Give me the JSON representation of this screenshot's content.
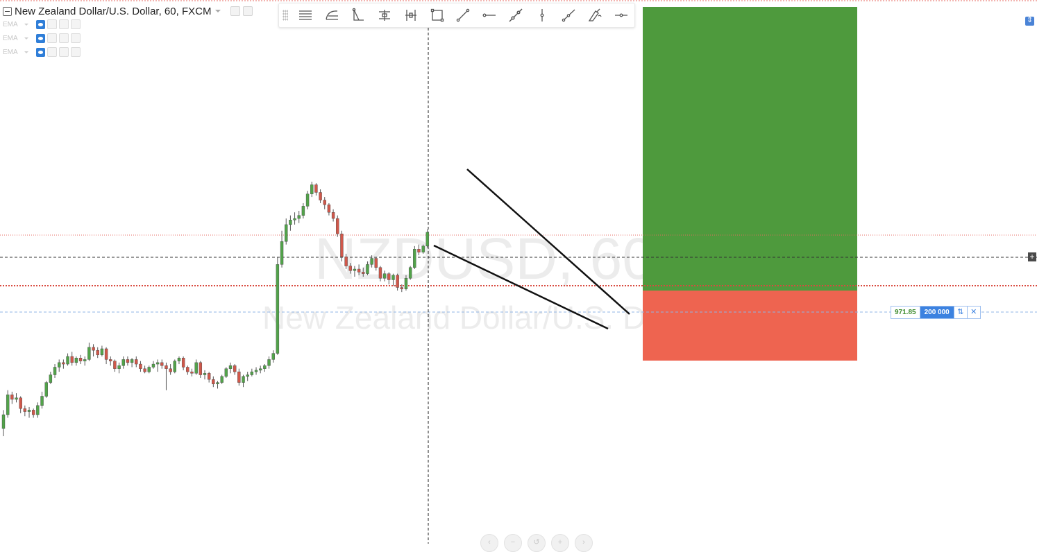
{
  "header": {
    "symbol_title": "New Zealand Dollar/U.S. Dollar, 60, FXCM"
  },
  "indicators": [
    {
      "name": "EMA"
    },
    {
      "name": "EMA"
    },
    {
      "name": "EMA"
    }
  ],
  "toolbar": {
    "tools": [
      {
        "name": "horizontal-lines-tool",
        "icon": "lines-icon"
      },
      {
        "name": "curve-tool",
        "icon": "curve-icon"
      },
      {
        "name": "triangle-tool",
        "icon": "triangle-icon"
      },
      {
        "name": "date-range-tool",
        "icon": "horizontal-range-icon"
      },
      {
        "name": "price-range-tool",
        "icon": "vertical-range-icon"
      },
      {
        "name": "rectangle-tool",
        "icon": "rectangle-icon"
      },
      {
        "name": "trend-line-tool",
        "icon": "line-icon"
      },
      {
        "name": "horizontal-ray-tool",
        "icon": "ray-icon"
      },
      {
        "name": "extended-line-tool",
        "icon": "extended-line-icon"
      },
      {
        "name": "vertical-line-tool",
        "icon": "vertical-line-icon"
      },
      {
        "name": "ray-tool",
        "icon": "ray-angle-icon"
      },
      {
        "name": "brush-tool",
        "icon": "brush-icon"
      },
      {
        "name": "horizontal-line-tool",
        "icon": "hline-icon"
      }
    ]
  },
  "watermark": {
    "symbol": "NZDUSD, 60",
    "description": "New Zealand Dollar/U.S. Dollar"
  },
  "position_tool": {
    "pnl": "971.85",
    "quantity": "200 000",
    "target_color": "#4e9a3d",
    "stop_color": "#ee6450"
  },
  "colors": {
    "up_candle": "#52a34a",
    "down_candle": "#d0574a",
    "wick": "#555555",
    "pattern_line": "#111111",
    "accent": "#3c82e0"
  },
  "candles": [
    [
      0.7223,
      0.7235,
      0.7218,
      0.7232
    ],
    [
      0.7232,
      0.7248,
      0.723,
      0.7245
    ],
    [
      0.7245,
      0.7247,
      0.7239,
      0.7242
    ],
    [
      0.7242,
      0.7246,
      0.724,
      0.7243
    ],
    [
      0.7243,
      0.7244,
      0.7233,
      0.7236
    ],
    [
      0.7236,
      0.7238,
      0.7231,
      0.7234
    ],
    [
      0.7234,
      0.7237,
      0.723,
      0.7235
    ],
    [
      0.7235,
      0.7236,
      0.723,
      0.7232
    ],
    [
      0.7232,
      0.724,
      0.723,
      0.7238
    ],
    [
      0.7238,
      0.7247,
      0.7236,
      0.7244
    ],
    [
      0.7244,
      0.7254,
      0.7243,
      0.7253
    ],
    [
      0.7253,
      0.726,
      0.7252,
      0.7258
    ],
    [
      0.7258,
      0.7265,
      0.7256,
      0.7263
    ],
    [
      0.7263,
      0.7268,
      0.726,
      0.7266
    ],
    [
      0.7266,
      0.7268,
      0.7262,
      0.7265
    ],
    [
      0.7265,
      0.7272,
      0.7264,
      0.727
    ],
    [
      0.727,
      0.7273,
      0.7264,
      0.7266
    ],
    [
      0.7266,
      0.727,
      0.7264,
      0.7269
    ],
    [
      0.7269,
      0.7271,
      0.7265,
      0.7267
    ],
    [
      0.7267,
      0.727,
      0.7264,
      0.7268
    ],
    [
      0.7268,
      0.7279,
      0.7267,
      0.7276
    ],
    [
      0.7276,
      0.7278,
      0.727,
      0.7274
    ],
    [
      0.7274,
      0.7276,
      0.7269,
      0.7271
    ],
    [
      0.7271,
      0.7277,
      0.727,
      0.7275
    ],
    [
      0.7275,
      0.7276,
      0.7265,
      0.7268
    ],
    [
      0.7268,
      0.727,
      0.7264,
      0.7267
    ],
    [
      0.7267,
      0.7268,
      0.726,
      0.7262
    ],
    [
      0.7262,
      0.7266,
      0.7259,
      0.7264
    ],
    [
      0.7264,
      0.727,
      0.7262,
      0.7268
    ],
    [
      0.7268,
      0.727,
      0.7264,
      0.7266
    ],
    [
      0.7266,
      0.7269,
      0.7263,
      0.7268
    ],
    [
      0.7268,
      0.727,
      0.7263,
      0.7265
    ],
    [
      0.7265,
      0.7267,
      0.726,
      0.7262
    ],
    [
      0.7262,
      0.7264,
      0.7259,
      0.726
    ],
    [
      0.726,
      0.7264,
      0.7259,
      0.7263
    ],
    [
      0.7263,
      0.7267,
      0.7262,
      0.7265
    ],
    [
      0.7265,
      0.7268,
      0.726,
      0.7266
    ],
    [
      0.7266,
      0.7268,
      0.7262,
      0.7264
    ],
    [
      0.7264,
      0.7266,
      0.7248,
      0.7262
    ],
    [
      0.7262,
      0.7265,
      0.7258,
      0.726
    ],
    [
      0.726,
      0.7268,
      0.7259,
      0.7267
    ],
    [
      0.7267,
      0.727,
      0.7265,
      0.7269
    ],
    [
      0.7269,
      0.727,
      0.7261,
      0.7263
    ],
    [
      0.7263,
      0.7264,
      0.7258,
      0.726
    ],
    [
      0.726,
      0.7262,
      0.7257,
      0.7259
    ],
    [
      0.7259,
      0.7268,
      0.7258,
      0.7266
    ],
    [
      0.7266,
      0.7267,
      0.7256,
      0.7258
    ],
    [
      0.7258,
      0.7261,
      0.7255,
      0.7259
    ],
    [
      0.7259,
      0.726,
      0.7253,
      0.7255
    ],
    [
      0.7255,
      0.7257,
      0.725,
      0.7252
    ],
    [
      0.7252,
      0.7254,
      0.7249,
      0.7253
    ],
    [
      0.7253,
      0.7258,
      0.7252,
      0.7257
    ],
    [
      0.7257,
      0.7263,
      0.7256,
      0.7262
    ],
    [
      0.7262,
      0.7266,
      0.7259,
      0.7264
    ],
    [
      0.7264,
      0.7265,
      0.7258,
      0.726
    ],
    [
      0.726,
      0.7262,
      0.7251,
      0.7253
    ],
    [
      0.7253,
      0.7258,
      0.725,
      0.7257
    ],
    [
      0.7257,
      0.726,
      0.7254,
      0.7258
    ],
    [
      0.7258,
      0.7262,
      0.7257,
      0.726
    ],
    [
      0.726,
      0.7263,
      0.7258,
      0.7261
    ],
    [
      0.7261,
      0.7264,
      0.7259,
      0.7262
    ],
    [
      0.7262,
      0.7265,
      0.726,
      0.7264
    ],
    [
      0.7264,
      0.727,
      0.7262,
      0.7268
    ],
    [
      0.7268,
      0.7274,
      0.7266,
      0.7272
    ],
    [
      0.7272,
      0.7335,
      0.7271,
      0.733
    ],
    [
      0.733,
      0.7352,
      0.7328,
      0.7345
    ],
    [
      0.7345,
      0.736,
      0.7343,
      0.7356
    ],
    [
      0.7356,
      0.7362,
      0.7352,
      0.7359
    ],
    [
      0.7359,
      0.7364,
      0.7356,
      0.736
    ],
    [
      0.736,
      0.7365,
      0.7357,
      0.7362
    ],
    [
      0.7362,
      0.737,
      0.736,
      0.7368
    ],
    [
      0.7368,
      0.7378,
      0.7366,
      0.7376
    ],
    [
      0.7376,
      0.7384,
      0.7374,
      0.7382
    ],
    [
      0.7382,
      0.7383,
      0.7375,
      0.7377
    ],
    [
      0.7377,
      0.7379,
      0.737,
      0.7372
    ],
    [
      0.7372,
      0.7374,
      0.7366,
      0.7369
    ],
    [
      0.7369,
      0.737,
      0.7362,
      0.7364
    ],
    [
      0.7364,
      0.7366,
      0.7358,
      0.736
    ],
    [
      0.736,
      0.7362,
      0.7348,
      0.735
    ],
    [
      0.735,
      0.7352,
      0.7332,
      0.7335
    ],
    [
      0.7335,
      0.7337,
      0.7327,
      0.7329
    ],
    [
      0.7329,
      0.7331,
      0.7324,
      0.7326
    ],
    [
      0.7326,
      0.7329,
      0.7322,
      0.7327
    ],
    [
      0.7327,
      0.733,
      0.7323,
      0.7325
    ],
    [
      0.7325,
      0.7328,
      0.7322,
      0.7324
    ],
    [
      0.7324,
      0.7332,
      0.7323,
      0.733
    ],
    [
      0.733,
      0.7336,
      0.7328,
      0.7334
    ],
    [
      0.7334,
      0.7335,
      0.7326,
      0.7328
    ],
    [
      0.7328,
      0.7329,
      0.7319,
      0.7321
    ],
    [
      0.7321,
      0.7326,
      0.7319,
      0.7324
    ],
    [
      0.7324,
      0.7325,
      0.7317,
      0.732
    ],
    [
      0.732,
      0.7324,
      0.7316,
      0.7323
    ],
    [
      0.7323,
      0.7324,
      0.7313,
      0.7315
    ],
    [
      0.7315,
      0.7317,
      0.7312,
      0.7314
    ],
    [
      0.7314,
      0.7323,
      0.7313,
      0.7321
    ],
    [
      0.7321,
      0.7329,
      0.732,
      0.7328
    ],
    [
      0.7328,
      0.7342,
      0.7327,
      0.734
    ],
    [
      0.734,
      0.7343,
      0.7336,
      0.7338
    ],
    [
      0.7338,
      0.7343,
      0.7337,
      0.7342
    ],
    [
      0.7342,
      0.7353,
      0.7341,
      0.7351
    ]
  ]
}
